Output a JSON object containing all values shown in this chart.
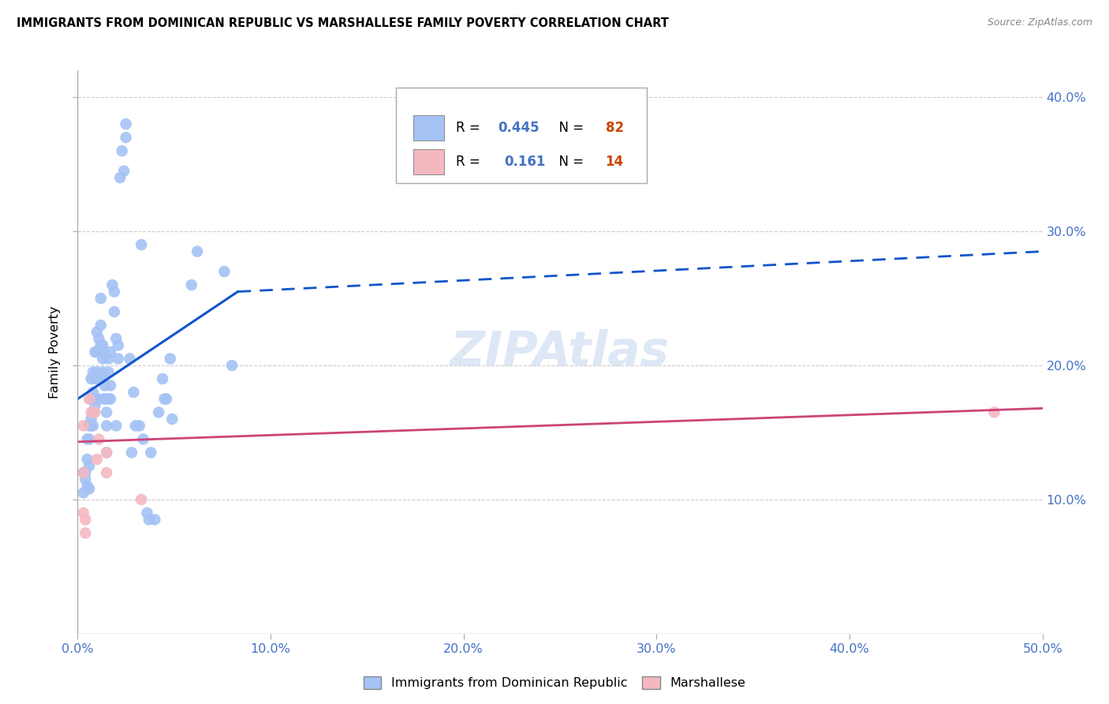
{
  "title": "IMMIGRANTS FROM DOMINICAN REPUBLIC VS MARSHALLESE FAMILY POVERTY CORRELATION CHART",
  "source": "Source: ZipAtlas.com",
  "ylabel": "Family Poverty",
  "xlim": [
    0.0,
    0.5
  ],
  "ylim": [
    0.0,
    0.42
  ],
  "xticks": [
    0.0,
    0.1,
    0.2,
    0.3,
    0.4,
    0.5
  ],
  "yticks": [
    0.1,
    0.2,
    0.3,
    0.4
  ],
  "xticklabels": [
    "0.0%",
    "10.0%",
    "20.0%",
    "30.0%",
    "40.0%",
    "50.0%"
  ],
  "yticklabels": [
    "10.0%",
    "20.0%",
    "30.0%",
    "40.0%"
  ],
  "blue_R": 0.445,
  "blue_N": 82,
  "pink_R": 0.161,
  "pink_N": 14,
  "blue_color": "#a4c2f4",
  "pink_color": "#f4b8c1",
  "blue_line_color": "#1155cc",
  "pink_line_color": "#cc4477",
  "watermark": "ZIPAtlas",
  "blue_scatter": [
    [
      0.003,
      0.12
    ],
    [
      0.003,
      0.105
    ],
    [
      0.004,
      0.12
    ],
    [
      0.004,
      0.115
    ],
    [
      0.005,
      0.11
    ],
    [
      0.005,
      0.13
    ],
    [
      0.005,
      0.145
    ],
    [
      0.006,
      0.155
    ],
    [
      0.006,
      0.145
    ],
    [
      0.006,
      0.125
    ],
    [
      0.006,
      0.108
    ],
    [
      0.007,
      0.16
    ],
    [
      0.007,
      0.175
    ],
    [
      0.007,
      0.19
    ],
    [
      0.007,
      0.155
    ],
    [
      0.008,
      0.165
    ],
    [
      0.008,
      0.18
    ],
    [
      0.008,
      0.195
    ],
    [
      0.008,
      0.155
    ],
    [
      0.009,
      0.19
    ],
    [
      0.009,
      0.21
    ],
    [
      0.009,
      0.175
    ],
    [
      0.009,
      0.17
    ],
    [
      0.01,
      0.21
    ],
    [
      0.01,
      0.195
    ],
    [
      0.01,
      0.225
    ],
    [
      0.011,
      0.19
    ],
    [
      0.011,
      0.175
    ],
    [
      0.011,
      0.22
    ],
    [
      0.012,
      0.23
    ],
    [
      0.012,
      0.25
    ],
    [
      0.012,
      0.215
    ],
    [
      0.012,
      0.19
    ],
    [
      0.013,
      0.21
    ],
    [
      0.013,
      0.215
    ],
    [
      0.013,
      0.205
    ],
    [
      0.013,
      0.195
    ],
    [
      0.014,
      0.175
    ],
    [
      0.014,
      0.185
    ],
    [
      0.014,
      0.175
    ],
    [
      0.015,
      0.165
    ],
    [
      0.015,
      0.155
    ],
    [
      0.015,
      0.135
    ],
    [
      0.016,
      0.195
    ],
    [
      0.016,
      0.205
    ],
    [
      0.016,
      0.175
    ],
    [
      0.017,
      0.21
    ],
    [
      0.017,
      0.185
    ],
    [
      0.017,
      0.175
    ],
    [
      0.018,
      0.26
    ],
    [
      0.019,
      0.255
    ],
    [
      0.019,
      0.24
    ],
    [
      0.02,
      0.22
    ],
    [
      0.02,
      0.155
    ],
    [
      0.021,
      0.215
    ],
    [
      0.021,
      0.205
    ],
    [
      0.022,
      0.34
    ],
    [
      0.023,
      0.36
    ],
    [
      0.024,
      0.345
    ],
    [
      0.025,
      0.38
    ],
    [
      0.025,
      0.37
    ],
    [
      0.027,
      0.205
    ],
    [
      0.028,
      0.135
    ],
    [
      0.029,
      0.18
    ],
    [
      0.03,
      0.155
    ],
    [
      0.032,
      0.155
    ],
    [
      0.033,
      0.29
    ],
    [
      0.034,
      0.145
    ],
    [
      0.036,
      0.09
    ],
    [
      0.037,
      0.085
    ],
    [
      0.038,
      0.135
    ],
    [
      0.04,
      0.085
    ],
    [
      0.042,
      0.165
    ],
    [
      0.044,
      0.19
    ],
    [
      0.045,
      0.175
    ],
    [
      0.046,
      0.175
    ],
    [
      0.048,
      0.205
    ],
    [
      0.049,
      0.16
    ],
    [
      0.059,
      0.26
    ],
    [
      0.062,
      0.285
    ],
    [
      0.076,
      0.27
    ],
    [
      0.08,
      0.2
    ]
  ],
  "pink_scatter": [
    [
      0.003,
      0.155
    ],
    [
      0.003,
      0.12
    ],
    [
      0.003,
      0.09
    ],
    [
      0.004,
      0.085
    ],
    [
      0.004,
      0.075
    ],
    [
      0.006,
      0.175
    ],
    [
      0.007,
      0.165
    ],
    [
      0.009,
      0.165
    ],
    [
      0.01,
      0.13
    ],
    [
      0.011,
      0.145
    ],
    [
      0.015,
      0.135
    ],
    [
      0.015,
      0.12
    ],
    [
      0.033,
      0.1
    ],
    [
      0.475,
      0.165
    ]
  ],
  "blue_line_start_x": 0.0,
  "blue_line_start_y": 0.175,
  "blue_line_solid_end_x": 0.083,
  "blue_line_solid_end_y": 0.255,
  "blue_line_dash_end_x": 0.5,
  "blue_line_dash_end_y": 0.285,
  "pink_line_start_x": 0.0,
  "pink_line_start_y": 0.143,
  "pink_line_end_x": 0.5,
  "pink_line_end_y": 0.168
}
